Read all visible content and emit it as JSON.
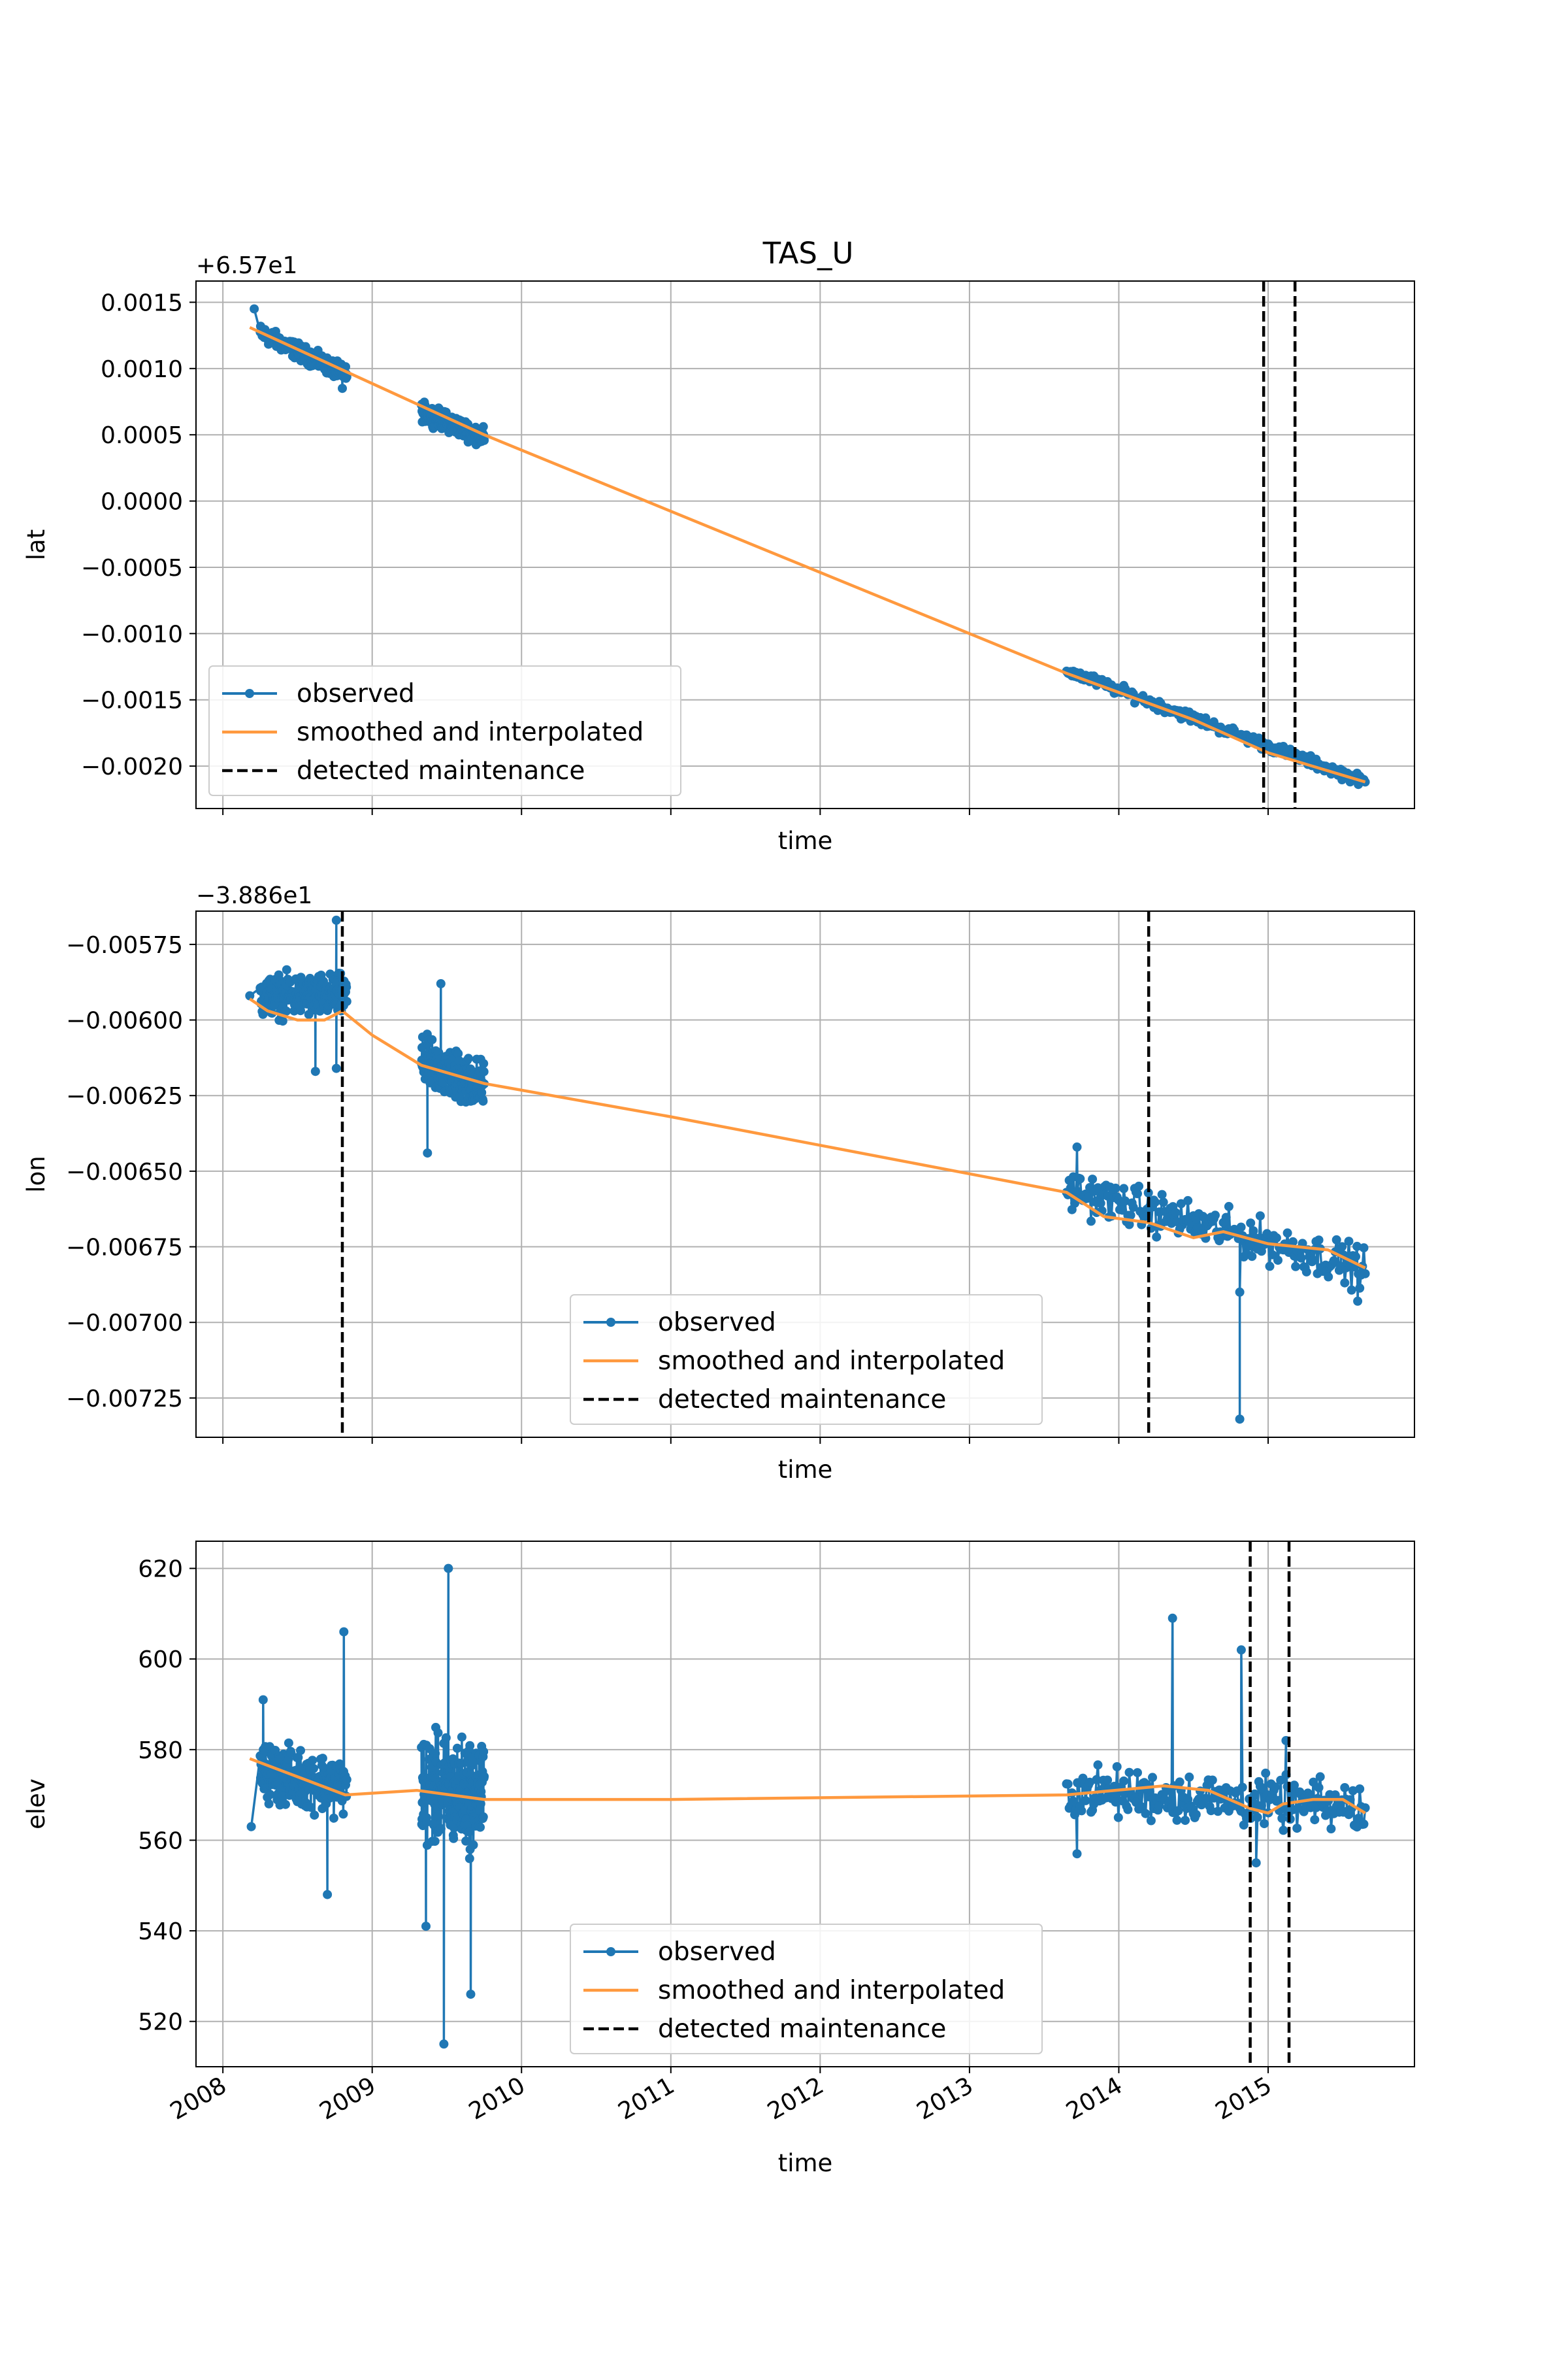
{
  "chart_data": {
    "type": "line",
    "title": "TAS_U",
    "x_tick_labels": [
      "2008",
      "2009",
      "2010",
      "2011",
      "2012",
      "2013",
      "2014",
      "2015"
    ],
    "xlim": [
      2007.82,
      2015.98
    ],
    "xlabel": "time",
    "legend": {
      "observed": "observed",
      "smoothed": "smoothed and interpolated",
      "maintenance": "detected maintenance"
    },
    "colors": {
      "observed": "#1f77b4",
      "smoothed": "#ff993e",
      "maintenance": "#000000",
      "grid": "#b0b0b0"
    },
    "panels": [
      {
        "ylabel": "lat",
        "offset_text": "+6.57e1",
        "ylim": [
          -0.00232,
          0.00166
        ],
        "yticks": [
          0.0015,
          0.001,
          0.0005,
          0.0,
          -0.0005,
          -0.001,
          -0.0015,
          -0.002
        ],
        "ytick_labels": [
          "0.0015",
          "0.0010",
          "0.0005",
          "0.0000",
          "−0.0005",
          "−0.0010",
          "−0.0015",
          "−0.0020"
        ],
        "legend_position": "lower-left",
        "show_x_tick_labels": false,
        "observed_segments": [
          {
            "start": 2008.25,
            "end": 2008.83,
            "y_start": 0.00127,
            "y_end": 0.00095,
            "spread": 9e-05,
            "outliers": [
              [
                2008.21,
                0.00145
              ],
              [
                2008.8,
                0.00085
              ]
            ]
          },
          {
            "start": 2009.33,
            "end": 2009.75,
            "y_start": 0.00068,
            "y_end": 0.00048,
            "spread": 0.0001,
            "outliers": []
          },
          {
            "start": 2013.65,
            "end": 2015.65,
            "y_start": -0.00128,
            "y_end": -0.00212,
            "spread": 6e-05,
            "outliers": []
          }
        ],
        "smoothed": {
          "x": [
            2008.18,
            2008.8,
            2009.75,
            2013.65,
            2014.5,
            2015.0,
            2015.65
          ],
          "y": [
            0.00131,
            0.00099,
            0.0005,
            -0.0013,
            -0.00165,
            -0.0019,
            -0.00212
          ]
        },
        "maintenance": [
          2014.97,
          2015.18
        ]
      },
      {
        "ylabel": "lon",
        "offset_text": "−3.886e1",
        "ylim": [
          -0.00738,
          -0.00564
        ],
        "yticks": [
          -0.00575,
          -0.006,
          -0.00625,
          -0.0065,
          -0.00675,
          -0.007,
          -0.00725
        ],
        "ytick_labels": [
          "−0.00575",
          "−0.00600",
          "−0.00625",
          "−0.00650",
          "−0.00675",
          "−0.00700",
          "−0.00725"
        ],
        "legend_position": "lower-center",
        "show_x_tick_labels": false,
        "observed_segments": [
          {
            "start": 2008.25,
            "end": 2008.83,
            "y_start": -0.00592,
            "y_end": -0.00592,
            "spread": 0.0001,
            "outliers": [
              [
                2008.62,
                -0.00617
              ],
              [
                2008.76,
                -0.00567
              ],
              [
                2008.76,
                -0.00616
              ],
              [
                2008.18,
                -0.00592
              ]
            ]
          },
          {
            "start": 2009.33,
            "end": 2009.75,
            "y_start": -0.00614,
            "y_end": -0.00622,
            "spread": 0.00012,
            "outliers": [
              [
                2009.37,
                -0.00644
              ],
              [
                2009.46,
                -0.00588
              ]
            ]
          },
          {
            "start": 2013.65,
            "end": 2015.65,
            "y_start": -0.00656,
            "y_end": -0.00682,
            "spread": 0.0001,
            "outliers": [
              [
                2014.81,
                -0.00732
              ],
              [
                2014.81,
                -0.0069
              ],
              [
                2013.72,
                -0.00642
              ],
              [
                2015.6,
                -0.00693
              ]
            ]
          }
        ],
        "smoothed": {
          "x": [
            2008.18,
            2008.3,
            2008.5,
            2008.68,
            2008.8,
            2009.0,
            2009.33,
            2009.75,
            2011.0,
            2013.65,
            2013.9,
            2014.2,
            2014.5,
            2014.7,
            2015.0,
            2015.4,
            2015.65
          ],
          "y": [
            -0.00593,
            -0.00597,
            -0.006,
            -0.006,
            -0.00597,
            -0.00605,
            -0.00615,
            -0.00621,
            -0.00632,
            -0.00657,
            -0.00665,
            -0.00667,
            -0.00672,
            -0.0067,
            -0.00674,
            -0.00676,
            -0.00682
          ]
        },
        "maintenance": [
          2008.8,
          2014.2
        ]
      },
      {
        "ylabel": "elev",
        "offset_text": "",
        "ylim": [
          510,
          626
        ],
        "yticks": [
          620,
          600,
          580,
          560,
          540,
          520
        ],
        "ytick_labels": [
          "620",
          "600",
          "580",
          "560",
          "540",
          "520"
        ],
        "legend_position": "lower-center",
        "show_x_tick_labels": true,
        "observed_segments": [
          {
            "start": 2008.25,
            "end": 2008.83,
            "y_start": 575,
            "y_end": 572,
            "spread": 9,
            "outliers": [
              [
                2008.81,
                606
              ],
              [
                2008.19,
                563
              ],
              [
                2008.7,
                548
              ],
              [
                2008.27,
                591
              ]
            ]
          },
          {
            "start": 2009.33,
            "end": 2009.75,
            "y_start": 571,
            "y_end": 570,
            "spread": 17,
            "outliers": [
              [
                2009.51,
                620
              ],
              [
                2009.48,
                515
              ],
              [
                2009.66,
                526
              ],
              [
                2009.36,
                541
              ]
            ]
          },
          {
            "start": 2013.65,
            "end": 2015.65,
            "y_start": 571,
            "y_end": 567,
            "spread": 8,
            "outliers": [
              [
                2014.36,
                609
              ],
              [
                2014.82,
                602
              ],
              [
                2015.12,
                582
              ],
              [
                2014.92,
                555
              ],
              [
                2013.72,
                557
              ]
            ]
          }
        ],
        "smoothed": {
          "x": [
            2008.18,
            2008.82,
            2009.3,
            2009.75,
            2011.0,
            2013.65,
            2014.3,
            2014.6,
            2014.88,
            2015.0,
            2015.1,
            2015.3,
            2015.5,
            2015.65
          ],
          "y": [
            578,
            570,
            571,
            569,
            569,
            570,
            572,
            571,
            567,
            566,
            568,
            569,
            569,
            566
          ]
        },
        "maintenance": [
          2014.88,
          2015.14
        ]
      }
    ]
  }
}
